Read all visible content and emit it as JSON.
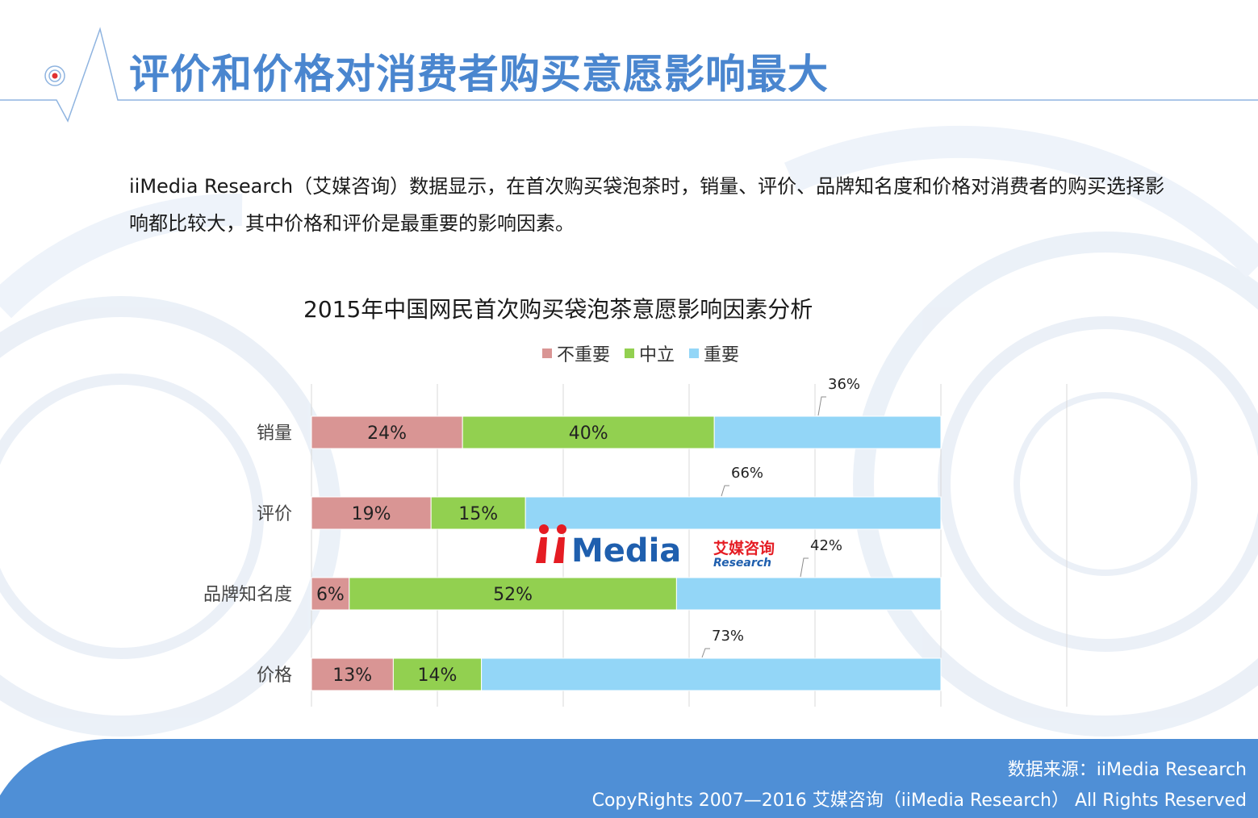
{
  "page": {
    "title": "评价和价格对消费者购买意愿影响最大",
    "summary": "iiMedia  Research（艾媒咨询）数据显示，在首次购买袋泡茶时，销量、评价、品牌知名度和价格对消费者的购买选择影响都比较大，其中价格和评价是最重要的影响因素。"
  },
  "colors": {
    "title": "#4a86cf",
    "not_important": "#d99594",
    "neutral": "#92d050",
    "important": "#93d6f7",
    "footer": "#4f8fd6"
  },
  "chart_data": {
    "type": "bar",
    "orientation": "horizontal",
    "stacked": true,
    "title": "2015年中国网民首次购买袋泡茶意愿影响因素分析",
    "legend_position": "top",
    "categories": [
      "销量",
      "评价",
      "品牌知名度",
      "价格"
    ],
    "series": [
      {
        "name": "不重要",
        "values": [
          24,
          19,
          6,
          13
        ],
        "labels": [
          "24%",
          "19%",
          "6%",
          "13%"
        ]
      },
      {
        "name": "中立",
        "values": [
          40,
          15,
          52,
          14
        ],
        "labels": [
          "40%",
          "15%",
          "52%",
          "14%"
        ]
      },
      {
        "name": "重要",
        "values": [
          36,
          66,
          42,
          73
        ],
        "labels": [
          "36%",
          "66%",
          "42%",
          "73%"
        ]
      }
    ],
    "xlim": [
      0,
      100
    ],
    "grid": true
  },
  "watermark": {
    "brand": "iiMedia",
    "cn": "艾媒咨询",
    "en": "Research"
  },
  "footer": {
    "source": "数据来源：iiMedia Research",
    "copyright": "CopyRights 2007—2016 艾媒咨询（iiMedia Research） All Rights Reserved"
  }
}
